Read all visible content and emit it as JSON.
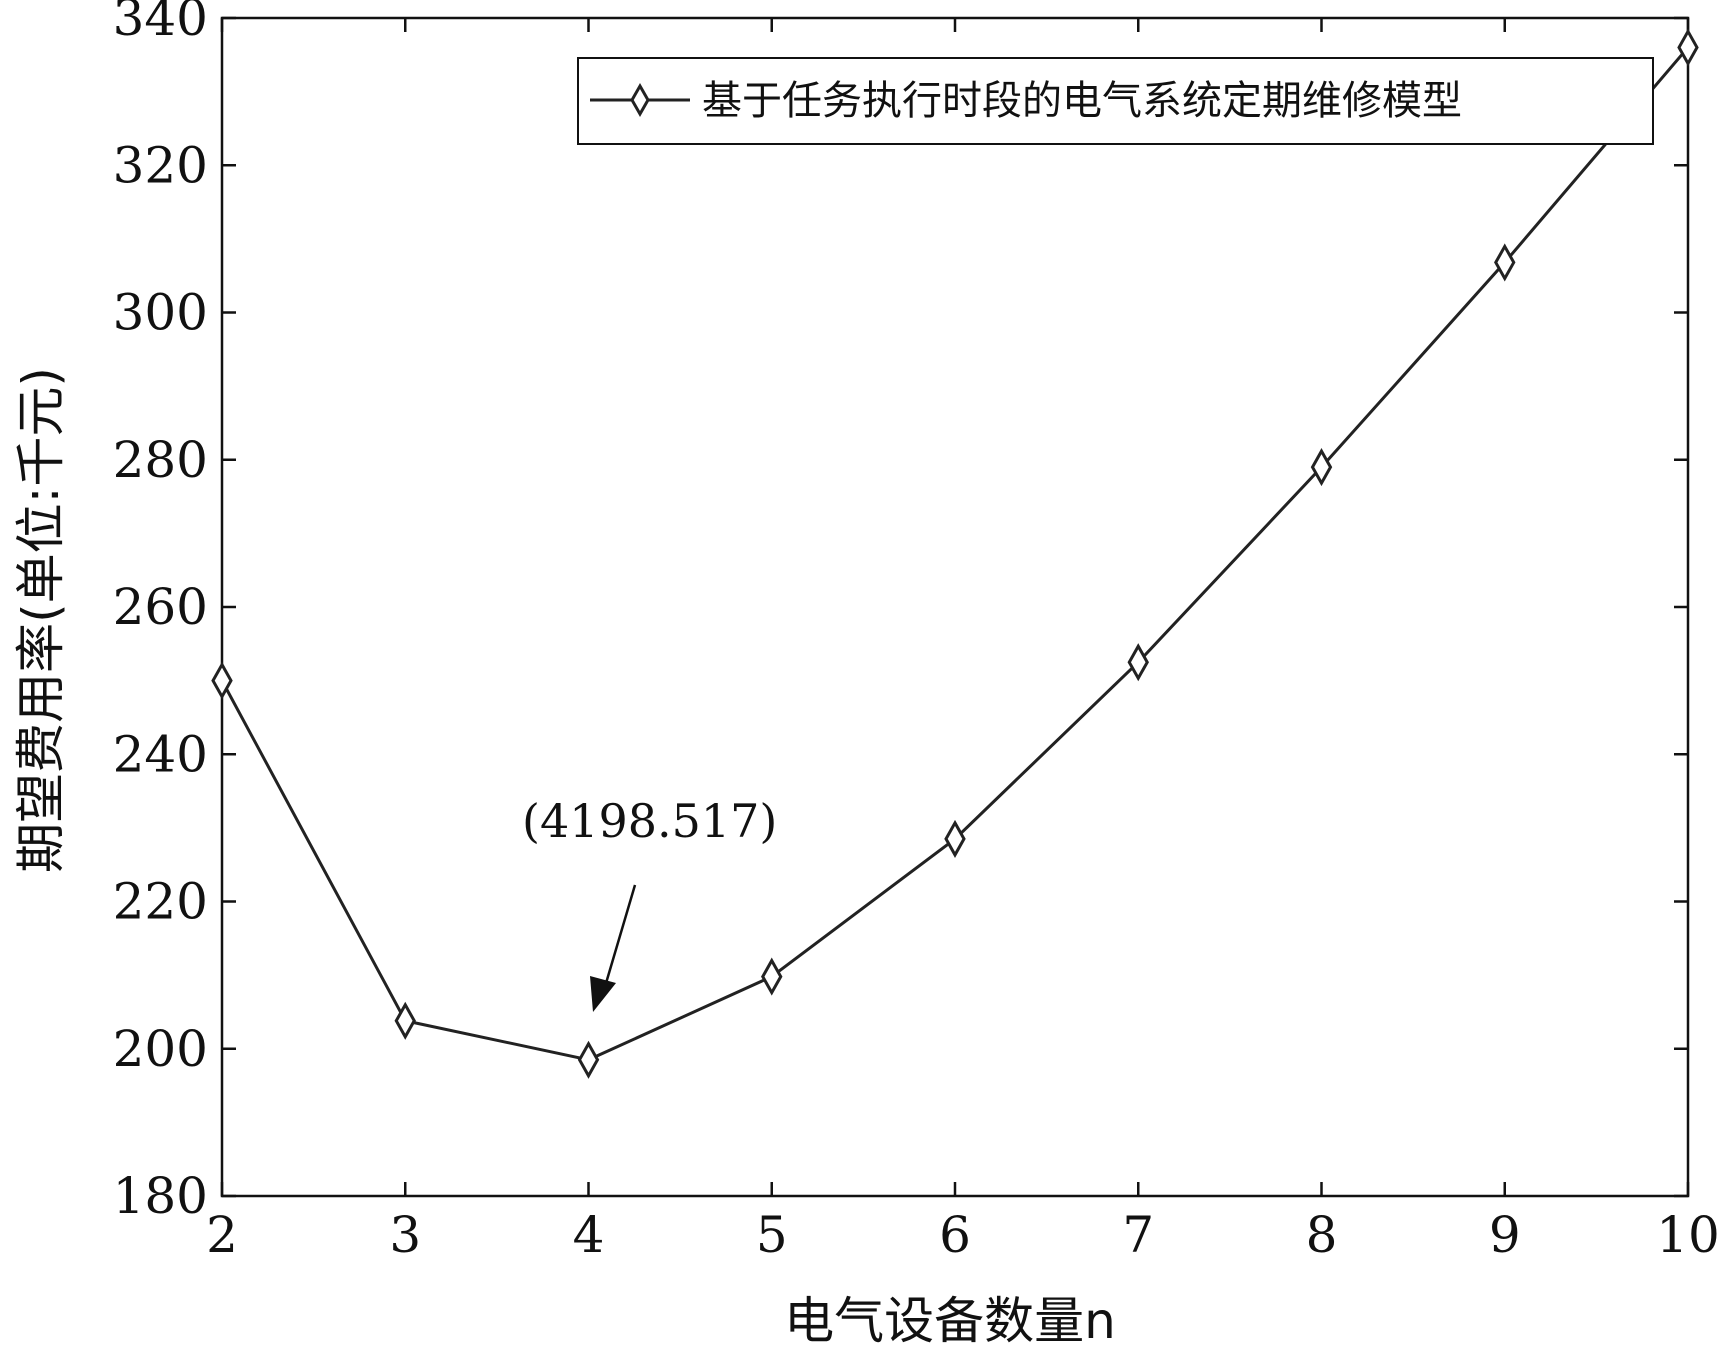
{
  "chart_data": {
    "type": "line",
    "x": [
      2,
      3,
      4,
      5,
      6,
      7,
      8,
      9,
      10
    ],
    "series": [
      {
        "name": "基于任务执行时段的电气系统定期维修模型",
        "values": [
          250,
          203.8,
          198.5,
          209.8,
          228.5,
          252.5,
          279,
          306.8,
          336
        ],
        "marker": "diamond",
        "color": "#222222"
      }
    ],
    "xlabel": "电气设备数量n",
    "ylabel": "期望费用率(单位:千元)",
    "xlim": [
      2,
      10
    ],
    "ylim": [
      180,
      340
    ],
    "xticks": [
      "2",
      "3",
      "4",
      "5",
      "6",
      "7",
      "8",
      "9",
      "10"
    ],
    "yticks": [
      "180",
      "200",
      "220",
      "240",
      "260",
      "280",
      "300",
      "320",
      "340"
    ],
    "grid": false,
    "legend_position": "top-right",
    "annotation": {
      "text": "(4198.517)",
      "points_to_x": 4
    }
  }
}
